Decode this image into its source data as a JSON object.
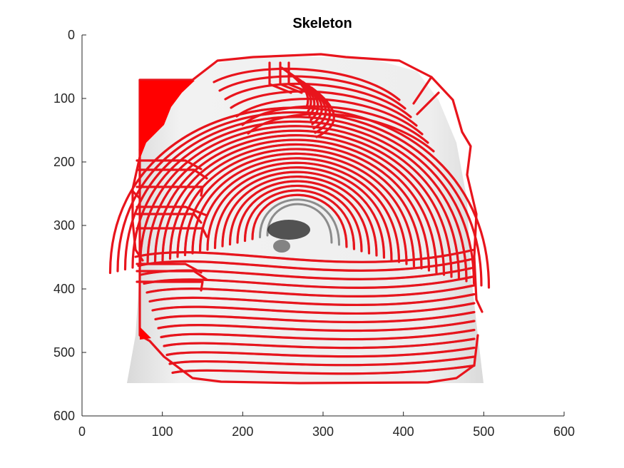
{
  "figure": {
    "title": "Skeleton",
    "xaxis": {
      "range": [
        0,
        600
      ],
      "ticks": [
        0,
        100,
        200,
        300,
        400,
        500,
        600
      ]
    },
    "yaxis": {
      "range": [
        0,
        600
      ],
      "reversed": true,
      "ticks": [
        0,
        100,
        200,
        300,
        400,
        500,
        600
      ]
    },
    "image_subject": "fingerprint grayscale image with skeleton overlay",
    "colors": {
      "overlay": "#e8141c",
      "background": "#ffffff",
      "axis": "#262626"
    }
  }
}
